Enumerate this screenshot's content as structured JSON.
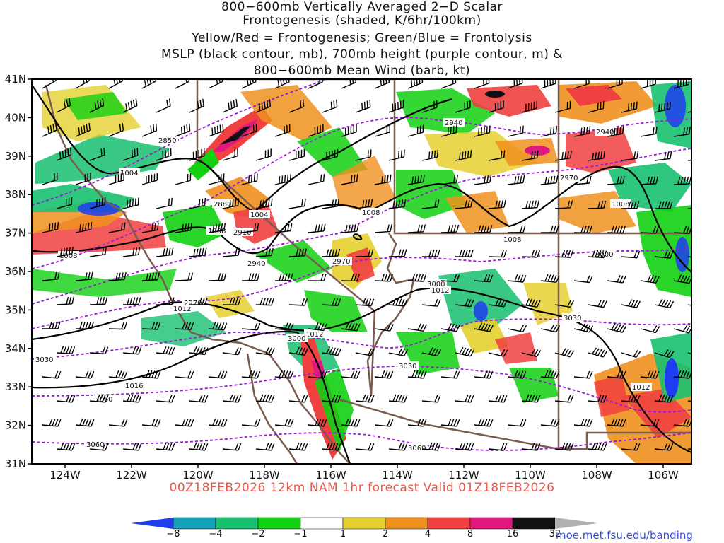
{
  "title_lines": [
    "800−600mb Vertically Averaged 2−D Scalar",
    "Frontogenesis (shaded, K/6hr/100km)",
    "Yellow/Red = Frontogenesis;  Green/Blue = Frontolysis",
    "MSLP (black contour, mb), 700mb height (purple contour, m) &",
    "800−600mb Mean Wind (barb, kt)"
  ],
  "subtitle": "00Z18FEB2026 12km NAM 1hr forecast Valid 01Z18FEB2026",
  "credit": "moe.met.fsu.edu/banding",
  "lat_labels": [
    "41N",
    "40N",
    "39N",
    "38N",
    "37N",
    "36N",
    "35N",
    "34N",
    "33N",
    "32N",
    "31N"
  ],
  "lon_labels": [
    "124W",
    "122W",
    "120W",
    "118W",
    "116W",
    "114W",
    "112W",
    "110W",
    "108W",
    "106W"
  ],
  "colorbar": {
    "labels": [
      "−8",
      "−4",
      "−2",
      "−1",
      "1",
      "2",
      "4",
      "8",
      "16",
      "32"
    ],
    "colors": [
      "#1e3cf0",
      "#14a0b8",
      "#18c070",
      "#12d012",
      "#ffffff",
      "#e6d030",
      "#f0901e",
      "#f04040",
      "#e01880",
      "#111111",
      "#b0b0b0"
    ]
  },
  "mslp_contour_labels": [
    "1004",
    "1008",
    "1004",
    "1008",
    "1012",
    "1008",
    "1008",
    "1012",
    "1016",
    "1008",
    "1012",
    "1012"
  ],
  "height_contour_labels": [
    "2850",
    "2880",
    "2910",
    "2940",
    "2940",
    "2940",
    "2970",
    "2970",
    "2970",
    "3000",
    "3000",
    "3000",
    "3030",
    "3030",
    "3030",
    "3060",
    "3060",
    "3060"
  ]
}
